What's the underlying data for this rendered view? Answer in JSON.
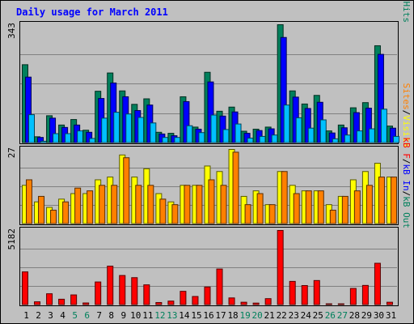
{
  "chart_data": {
    "type": "bar",
    "title": "Daily usage for March 2011",
    "categories": [
      "1",
      "2",
      "3",
      "4",
      "5",
      "6",
      "7",
      "8",
      "9",
      "10",
      "11",
      "12",
      "13",
      "14",
      "15",
      "16",
      "17",
      "18",
      "19",
      "20",
      "21",
      "22",
      "23",
      "24",
      "25",
      "26",
      "27",
      "28",
      "29",
      "30",
      "31"
    ],
    "weekend_days": [
      "5",
      "6",
      "12",
      "13",
      "19",
      "20",
      "26",
      "27"
    ],
    "colors": {
      "title": "#0000ff",
      "hits": "#00805c",
      "files": "#0000ff",
      "pages": "#00c0ff",
      "visits": "#ffff00",
      "sites": "#ff8000",
      "kb_in": "#0000ff",
      "kb_out": "#00805c",
      "kb_f": "#ff0000",
      "weekday_label": "#000000",
      "weekend_label": "#00805c",
      "plot_background": "#c0c0c0",
      "grid": "#808080"
    },
    "panels": [
      {
        "id": "hits-files-pages",
        "ymax": 343,
        "ymax_label": "343",
        "legend": [
          {
            "text": "Pages",
            "color": "#00c0ff"
          },
          {
            "text": "/",
            "color": "#000000"
          },
          {
            "text": "Files",
            "color": "#0000ff"
          },
          {
            "text": "/",
            "color": "#000000"
          },
          {
            "text": "Hits",
            "color": "#00805c"
          }
        ],
        "series": [
          {
            "name": "Hits",
            "color": "#00805c",
            "values": [
              227,
              18,
              79,
              52,
              68,
              37,
              150,
              203,
              151,
              112,
              128,
              31,
              28,
              134,
              46,
              205,
              92,
              104,
              34,
              40,
              46,
              343,
              151,
              113,
              138,
              35,
              52,
              102,
              117,
              282,
              49
            ]
          },
          {
            "name": "Files",
            "color": "#0000ff",
            "values": [
              191,
              16,
              72,
              45,
              52,
              31,
              129,
              174,
              134,
              94,
              110,
              26,
              21,
              120,
              40,
              177,
              78,
              90,
              28,
              36,
              41,
              306,
              133,
              100,
              118,
              29,
              44,
              88,
              101,
              257,
              43
            ]
          },
          {
            "name": "Pages",
            "color": "#00c0ff",
            "values": [
              82,
              5,
              27,
              27,
              35,
              13,
              72,
              89,
              84,
              74,
              58,
              16,
              16,
              50,
              30,
              81,
              39,
              55,
              14,
              19,
              23,
              110,
              73,
              43,
              67,
              12,
              23,
              35,
              41,
              98,
              19
            ]
          }
        ]
      },
      {
        "id": "visits-sites",
        "ymax": 27,
        "ymax_label": "27",
        "legend": [
          {
            "text": "Sites",
            "color": "#ff8000"
          },
          {
            "text": "/",
            "color": "#000000"
          },
          {
            "text": "Visits",
            "color": "#ffff00"
          }
        ],
        "series": [
          {
            "name": "Visits",
            "color": "#ffff00",
            "values": [
              14,
              8,
              6,
              9,
              11,
              11,
              16,
              17,
              25,
              17,
              20,
              11,
              8,
              14,
              14,
              21,
              19,
              27,
              10,
              12,
              7,
              19,
              14,
              12,
              12,
              7,
              10,
              16,
              19,
              22,
              17
            ]
          },
          {
            "name": "Sites",
            "color": "#ff8000",
            "values": [
              16,
              10,
              5,
              8,
              13,
              12,
              14,
              14,
              24,
              14,
              14,
              9,
              7,
              14,
              14,
              16,
              14,
              26,
              7,
              11,
              7,
              19,
              11,
              12,
              12,
              5,
              10,
              12,
              14,
              17,
              17
            ]
          }
        ]
      },
      {
        "id": "kbf-kbin-kbout",
        "ymax": 5182,
        "ymax_label": "5182",
        "legend": [
          {
            "text": "kB F",
            "color": "#ff0000"
          },
          {
            "text": "/",
            "color": "#000000"
          },
          {
            "text": "kB In",
            "color": "#0000ff"
          },
          {
            "text": "/",
            "color": "#000000"
          },
          {
            "text": "kB Out",
            "color": "#00805c"
          }
        ],
        "series": [
          {
            "name": "kB F",
            "color": "#ff0000",
            "values": [
              2300,
              220,
              780,
              400,
              700,
              140,
              1600,
              2700,
              2050,
              1900,
              1400,
              170,
              270,
              950,
              590,
              1250,
              2500,
              490,
              190,
              130,
              440,
              5182,
              1640,
              1350,
              1700,
              80,
              80,
              1150,
              1360,
              2900,
              190
            ]
          },
          {
            "name": "kB In",
            "color": "#0000ff",
            "values": [
              0,
              0,
              0,
              0,
              0,
              0,
              0,
              0,
              0,
              0,
              0,
              0,
              0,
              0,
              0,
              0,
              0,
              0,
              0,
              0,
              0,
              0,
              0,
              0,
              0,
              0,
              0,
              0,
              0,
              0,
              0
            ]
          },
          {
            "name": "kB Out",
            "color": "#00805c",
            "values": [
              0,
              0,
              0,
              0,
              0,
              0,
              0,
              0,
              0,
              0,
              0,
              0,
              0,
              0,
              0,
              0,
              0,
              0,
              0,
              0,
              0,
              0,
              0,
              0,
              0,
              0,
              0,
              0,
              0,
              0,
              0
            ]
          }
        ]
      }
    ]
  }
}
